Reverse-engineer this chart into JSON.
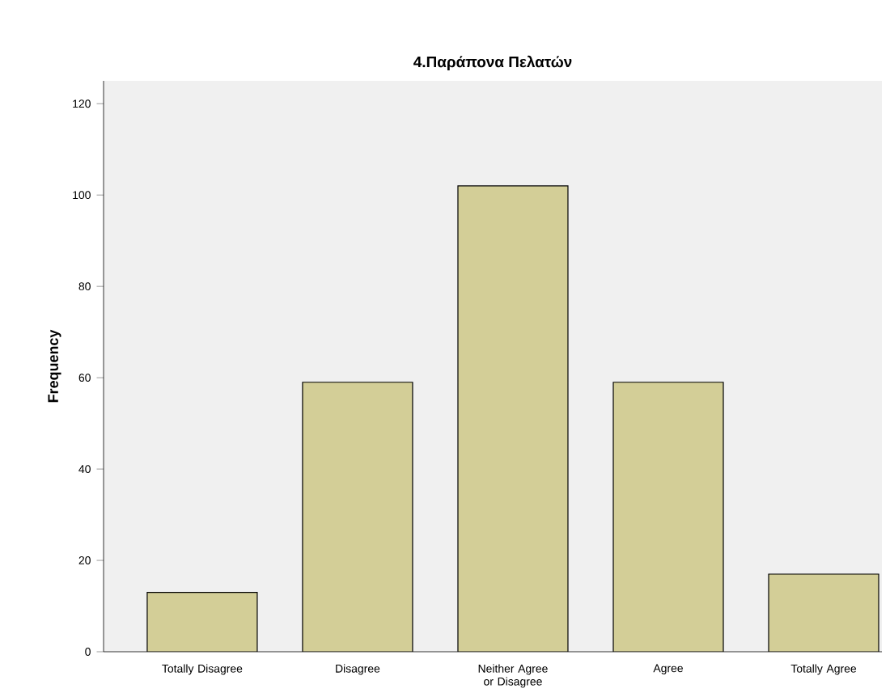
{
  "chart_data": {
    "type": "bar",
    "title": "4.Παράπονα Πελατών",
    "ylabel": "Frequency",
    "categories": [
      "Totally Disagree",
      "Disagree",
      "Neither Agree or Disagree",
      "Agree",
      "Totally Agree"
    ],
    "values": [
      13,
      59,
      102,
      59,
      17
    ],
    "color": "#d3ce97",
    "ylim": [
      0,
      125
    ],
    "yticks": [
      0,
      20,
      40,
      60,
      80,
      100,
      120
    ]
  }
}
